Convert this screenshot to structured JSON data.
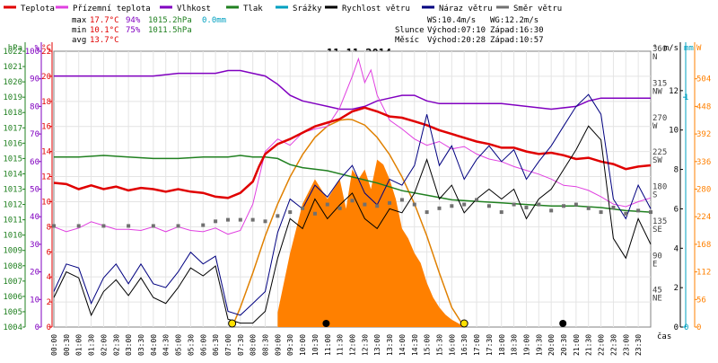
{
  "chart_data": {
    "type": "line",
    "title": "11.11.2014",
    "xlabel": "čas",
    "x_ticks": [
      "00:00",
      "00:30",
      "01:00",
      "01:30",
      "02:00",
      "02:30",
      "03:00",
      "03:30",
      "04:00",
      "04:30",
      "05:00",
      "05:30",
      "06:00",
      "06:30",
      "07:00",
      "07:30",
      "08:00",
      "08:30",
      "09:00",
      "09:30",
      "10:00",
      "10:30",
      "11:00",
      "11:30",
      "12:00",
      "12:30",
      "13:00",
      "13:30",
      "14:00",
      "14:30",
      "15:00",
      "15:30",
      "16:00",
      "16:30",
      "17:00",
      "17:30",
      "18:00",
      "18:30",
      "19:00",
      "19:30",
      "20:00",
      "20:30",
      "21:00",
      "21:30",
      "22:00",
      "22:30",
      "23:00",
      "23:30"
    ],
    "xlim": [
      0,
      24
    ],
    "legend_placement": "top",
    "grid": true,
    "legend": [
      {
        "label": "Teplota",
        "color": "#e00000"
      },
      {
        "label": "Přízemní teplota",
        "color": "#e040e0"
      },
      {
        "label": "Vlhkost",
        "color": "#8000c0"
      },
      {
        "label": "Tlak",
        "color": "#208020"
      },
      {
        "label": "Srážky",
        "color": "#00a0c0"
      },
      {
        "label": "Rychlost větru",
        "color": "#000000"
      },
      {
        "label": "Náraz větru",
        "color": "#000080"
      },
      {
        "label": "Směr větru",
        "color": "#707070"
      }
    ],
    "stats": {
      "max": {
        "label": "max",
        "temp": "17.7°C",
        "hum": "94%",
        "press": "1015.2hPa",
        "rain": "0.0mm"
      },
      "min": {
        "label": "min",
        "temp": "10.1°C",
        "hum": "75%",
        "press": "1011.5hPa"
      },
      "avg": {
        "label": "avg",
        "temp": "13.7°C"
      }
    },
    "wind_info": {
      "ws": "WS:10.4m/s",
      "wg": "WG:12.2m/s",
      "sun_label": "Slunce",
      "sunrise": "Východ:07:10",
      "sunset": "Západ:16:30",
      "moon_label": "Měsíc",
      "moonrise": "Východ:20:28",
      "moonset": "Západ:10:57"
    },
    "axes": {
      "pressure": {
        "unit": "hPa",
        "ticks": [
          "1004",
          "1005",
          "1006",
          "1007",
          "1008",
          "1009",
          "1010",
          "1011",
          "1012",
          "1013",
          "1014",
          "1015",
          "1016",
          "1017",
          "1018",
          "1019",
          "1020",
          "1021",
          "1022"
        ],
        "ylim": [
          1004,
          1022
        ],
        "color": "#208020"
      },
      "humidity": {
        "unit": "%",
        "ticks": [
          "0",
          "10",
          "20",
          "30",
          "40",
          "50",
          "60",
          "70",
          "80",
          "90",
          "100"
        ],
        "ylim": [
          0,
          100
        ],
        "color": "#8000c0"
      },
      "temperature": {
        "unit": "°C",
        "ticks": [
          "0",
          "2",
          "4",
          "6",
          "8",
          "10",
          "12",
          "14",
          "16",
          "18",
          "20",
          "22"
        ],
        "ylim": [
          0,
          22
        ],
        "color": "#e00000"
      },
      "direction": {
        "unit": "°",
        "ticks": [
          "0",
          "45",
          "90",
          "135",
          "180",
          "225",
          "270",
          "315",
          "360"
        ],
        "cardinals": [
          "N",
          "NE",
          "E",
          "SE",
          "S",
          "SW",
          "W",
          "NW",
          "N"
        ],
        "ylim": [
          0,
          360
        ],
        "color": "#404040"
      },
      "wind_speed": {
        "unit": "m/s",
        "ticks": [
          "0",
          "2",
          "4",
          "6",
          "8",
          "10",
          "12"
        ],
        "ylim": [
          0,
          14
        ],
        "color": "#000000"
      },
      "rain": {
        "unit": "mm",
        "ticks": [
          "0",
          "1"
        ],
        "ylim": [
          0,
          1.2
        ],
        "color": "#00a0c0"
      },
      "solar": {
        "unit": "W",
        "ticks": [
          "0",
          "56",
          "112",
          "168",
          "224",
          "280",
          "336",
          "392",
          "448",
          "504"
        ],
        "ylim": [
          0,
          560
        ],
        "color": "#ff8000"
      }
    },
    "series": [
      {
        "name": "Teplota",
        "axis": "temperature",
        "color": "#e00000",
        "x": [
          0,
          0.5,
          1,
          1.5,
          2,
          2.5,
          3,
          3.5,
          4,
          4.5,
          5,
          5.5,
          6,
          6.5,
          7,
          7.5,
          8,
          8.25,
          8.5,
          9,
          9.5,
          10,
          10.5,
          11,
          11.5,
          12,
          12.5,
          13,
          13.5,
          14,
          14.5,
          15,
          15.5,
          16,
          16.5,
          17,
          17.5,
          18,
          18.5,
          19,
          19.5,
          20,
          20.5,
          21,
          21.5,
          22,
          22.5,
          23,
          23.5,
          24
        ],
        "values": [
          11.5,
          11.4,
          11.0,
          11.3,
          11.0,
          11.2,
          10.9,
          11.1,
          11.0,
          10.8,
          11.0,
          10.8,
          10.7,
          10.4,
          10.3,
          10.7,
          11.6,
          12.8,
          13.8,
          14.6,
          15.0,
          15.5,
          16.0,
          16.3,
          16.6,
          17.2,
          17.5,
          17.2,
          16.8,
          16.7,
          16.4,
          16.1,
          15.7,
          15.4,
          15.1,
          14.8,
          14.6,
          14.3,
          14.3,
          14.0,
          13.8,
          13.9,
          13.7,
          13.4,
          13.5,
          13.2,
          13.0,
          12.6,
          12.8,
          12.9
        ]
      },
      {
        "name": "Přízemní teplota",
        "axis": "temperature",
        "color": "#e040e0",
        "x": [
          0,
          0.5,
          1,
          1.5,
          2,
          2.5,
          3,
          3.5,
          4,
          4.5,
          5,
          5.5,
          6,
          6.5,
          7,
          7.5,
          8,
          8.5,
          9,
          9.5,
          10,
          10.5,
          11,
          11.5,
          12,
          12.25,
          12.5,
          12.75,
          13,
          13.5,
          14,
          14.5,
          15,
          15.5,
          16,
          16.5,
          17,
          17.5,
          18,
          18.5,
          19,
          19.5,
          20,
          20.5,
          21,
          21.5,
          22,
          22.5,
          23,
          23.5,
          24
        ],
        "values": [
          8.0,
          7.6,
          7.9,
          8.4,
          8.1,
          7.8,
          7.8,
          7.7,
          8.0,
          7.6,
          8.0,
          7.7,
          7.6,
          7.9,
          7.4,
          7.7,
          9.8,
          14.0,
          15.0,
          14.5,
          15.5,
          15.8,
          16.0,
          17.5,
          20.0,
          21.4,
          19.5,
          20.5,
          18.5,
          16.5,
          15.8,
          15.0,
          14.5,
          14.8,
          14.2,
          14.4,
          13.8,
          13.4,
          13.2,
          12.8,
          12.5,
          12.2,
          11.8,
          11.3,
          11.2,
          10.9,
          10.4,
          9.8,
          9.6,
          10.0,
          10.3
        ]
      },
      {
        "name": "Vlhkost",
        "axis": "humidity",
        "color": "#8000c0",
        "x": [
          0,
          1,
          2,
          3,
          4,
          5,
          6,
          6.5,
          7,
          7.5,
          8,
          8.5,
          9,
          9.5,
          10,
          10.5,
          11,
          11.5,
          12,
          12.5,
          13,
          13.5,
          14,
          14.5,
          15,
          15.5,
          16,
          17,
          18,
          19,
          20,
          21,
          21.5,
          22,
          23,
          24
        ],
        "values": [
          91,
          91,
          91,
          91,
          91,
          92,
          92,
          92,
          93,
          93,
          92,
          91,
          88,
          84,
          82,
          81,
          80,
          79,
          79,
          80,
          82,
          83,
          84,
          84,
          82,
          81,
          81,
          81,
          81,
          80,
          79,
          80,
          82,
          83,
          83,
          83
        ]
      },
      {
        "name": "Tlak",
        "axis": "pressure",
        "color": "#208020",
        "x": [
          0,
          1,
          2,
          3,
          4,
          5,
          6,
          7,
          7.5,
          8,
          8.5,
          9,
          9.5,
          10,
          11,
          12,
          13,
          14,
          15,
          16,
          17,
          18,
          19,
          20,
          21,
          22,
          23,
          24
        ],
        "values": [
          1015.1,
          1015.1,
          1015.2,
          1015.1,
          1015.0,
          1015.0,
          1015.1,
          1015.1,
          1015.2,
          1015.1,
          1015.1,
          1015.0,
          1014.6,
          1014.4,
          1014.2,
          1013.8,
          1013.4,
          1012.9,
          1012.6,
          1012.3,
          1012.2,
          1012.1,
          1012.0,
          1011.9,
          1011.9,
          1011.8,
          1011.6,
          1011.5
        ]
      },
      {
        "name": "Rychlost větru",
        "axis": "wind_speed",
        "color": "#000000",
        "x": [
          0,
          0.5,
          1,
          1.5,
          2,
          2.5,
          3,
          3.5,
          4,
          4.5,
          5,
          5.5,
          6,
          6.5,
          7,
          7.5,
          8,
          8.5,
          9,
          9.5,
          10,
          10.5,
          11,
          11.5,
          12,
          12.5,
          13,
          13.5,
          14,
          14.5,
          15,
          15.5,
          16,
          16.5,
          17,
          17.5,
          18,
          18.5,
          19,
          19.5,
          20,
          20.5,
          21,
          21.5,
          22,
          22.5,
          23,
          23.5,
          24
        ],
        "values": [
          1.5,
          2.8,
          2.5,
          0.6,
          1.8,
          2.4,
          1.6,
          2.5,
          1.5,
          1.2,
          2.0,
          3.0,
          2.6,
          3.1,
          0.4,
          0.2,
          0.2,
          0.8,
          3.5,
          5.5,
          5.0,
          6.5,
          5.5,
          6.2,
          6.8,
          5.5,
          5.0,
          6.0,
          5.8,
          6.8,
          8.5,
          6.5,
          7.2,
          5.8,
          6.5,
          7.0,
          6.5,
          7.0,
          5.5,
          6.5,
          7.0,
          8.0,
          9.0,
          10.2,
          9.5,
          4.5,
          3.5,
          5.5,
          4.2
        ]
      },
      {
        "name": "Náraz větru",
        "axis": "wind_speed",
        "color": "#000080",
        "x": [
          0,
          0.5,
          1,
          1.5,
          2,
          2.5,
          3,
          3.5,
          4,
          4.5,
          5,
          5.5,
          6,
          6.5,
          7,
          7.5,
          8,
          8.5,
          9,
          9.5,
          10,
          10.5,
          11,
          11.5,
          12,
          12.5,
          13,
          13.5,
          14,
          14.5,
          15,
          15.5,
          16,
          16.5,
          17,
          17.5,
          18,
          18.5,
          19,
          19.5,
          20,
          20.5,
          21,
          21.5,
          22,
          22.5,
          23,
          23.5,
          24
        ],
        "values": [
          1.8,
          3.2,
          3.0,
          1.2,
          2.5,
          3.2,
          2.2,
          3.2,
          2.2,
          2.0,
          2.8,
          3.8,
          3.2,
          3.6,
          0.8,
          0.6,
          1.2,
          1.8,
          4.8,
          6.5,
          6.0,
          7.2,
          6.6,
          7.5,
          8.2,
          6.8,
          6.2,
          7.5,
          7.2,
          8.2,
          10.8,
          8.2,
          9.2,
          7.5,
          8.5,
          9.2,
          8.4,
          9.0,
          7.5,
          8.4,
          9.2,
          10.2,
          11.2,
          11.8,
          10.8,
          6.5,
          5.5,
          7.2,
          6.0
        ]
      },
      {
        "name": "Směr větru",
        "axis": "direction",
        "color": "#707070",
        "x": [
          0,
          1,
          2,
          3,
          4,
          5,
          6,
          6.5,
          7,
          7.5,
          8,
          8.5,
          9,
          9.5,
          10,
          10.5,
          11,
          11.5,
          12,
          12.5,
          13,
          13.5,
          14,
          14.5,
          15,
          15.5,
          16,
          16.5,
          17,
          17.5,
          18,
          18.5,
          19,
          19.5,
          20,
          20.5,
          21,
          21.5,
          22,
          22.5,
          23,
          23.5,
          24
        ],
        "values": [
          132,
          132,
          132,
          132,
          132,
          132,
          133,
          138,
          140,
          140,
          140,
          138,
          145,
          150,
          155,
          148,
          160,
          155,
          165,
          160,
          158,
          162,
          166,
          160,
          150,
          155,
          158,
          160,
          166,
          158,
          150,
          160,
          156,
          160,
          152,
          158,
          160,
          155,
          150,
          156,
          148,
          152,
          150
        ]
      }
    ],
    "solar_radiation": {
      "axis": "solar",
      "color": "#ff8000",
      "fill": true,
      "x": [
        9.0,
        9.5,
        10,
        10.5,
        11,
        11.25,
        11.5,
        11.75,
        12,
        12.25,
        12.5,
        12.75,
        13,
        13.25,
        13.5,
        13.75,
        14,
        14.25,
        14.5,
        14.75,
        15,
        15.25,
        15.5,
        15.75,
        16,
        16.25,
        16.5
      ],
      "values": [
        30,
        150,
        250,
        300,
        260,
        280,
        300,
        240,
        320,
        300,
        320,
        280,
        340,
        330,
        300,
        260,
        200,
        180,
        150,
        130,
        90,
        60,
        40,
        25,
        15,
        8,
        0
      ]
    },
    "solar_theoretical": {
      "axis": "solar",
      "color": "#e08000",
      "x": [
        7.17,
        7.5,
        8,
        8.5,
        9,
        9.5,
        10,
        10.5,
        11,
        11.5,
        11.83,
        12,
        12.5,
        13,
        13.5,
        14,
        14.5,
        15,
        15.5,
        16,
        16.5
      ],
      "values": [
        0,
        40,
        110,
        185,
        250,
        305,
        350,
        385,
        408,
        420,
        422,
        421,
        410,
        385,
        350,
        305,
        250,
        185,
        110,
        40,
        0
      ]
    },
    "markers": [
      {
        "name": "sunrise",
        "x": 7.17,
        "symbol": "sun",
        "color": "#ffe000"
      },
      {
        "name": "sunset",
        "x": 16.5,
        "symbol": "sun",
        "color": "#ffe000"
      },
      {
        "name": "moonset",
        "x": 10.95,
        "symbol": "moon",
        "color": "#000000"
      },
      {
        "name": "moonrise",
        "x": 20.47,
        "symbol": "moon",
        "color": "#000000"
      }
    ]
  }
}
